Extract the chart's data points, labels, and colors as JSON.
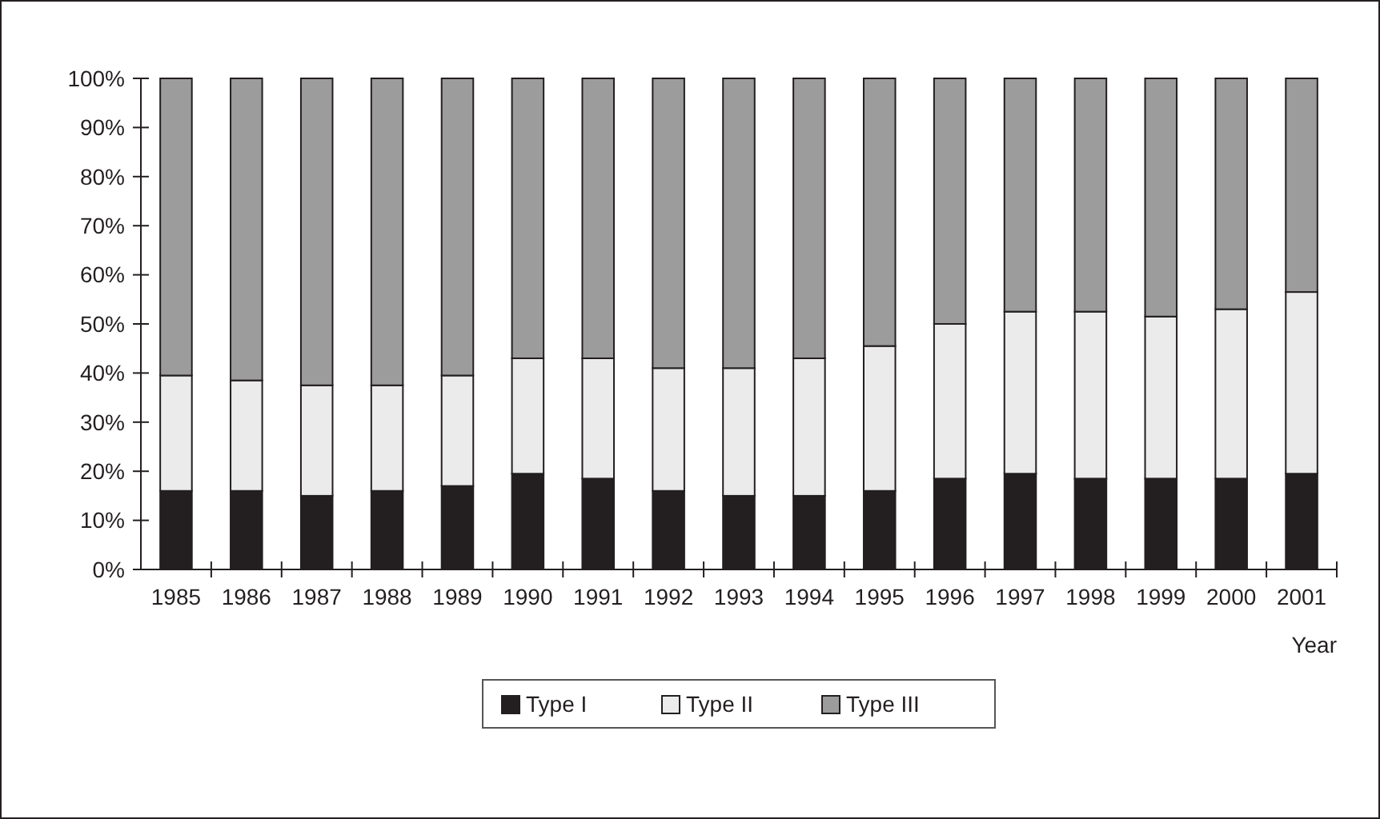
{
  "chart_data": {
    "type": "bar",
    "stacked": true,
    "xlabel": "Year",
    "categories": [
      "1985",
      "1986",
      "1987",
      "1988",
      "1989",
      "1990",
      "1991",
      "1992",
      "1993",
      "1994",
      "1995",
      "1996",
      "1997",
      "1998",
      "1999",
      "2000",
      "2001"
    ],
    "series": [
      {
        "name": "Type I",
        "color": "#231f20",
        "values": [
          16,
          16,
          15,
          16,
          17,
          19.5,
          18.5,
          16,
          15,
          15,
          16,
          18.5,
          19.5,
          18.5,
          18.5,
          18.5,
          19.5
        ]
      },
      {
        "name": "Type II",
        "color": "#ebebeb",
        "values": [
          23.5,
          22.5,
          22.5,
          21.5,
          22.5,
          23.5,
          24.5,
          25,
          26,
          28,
          29.5,
          31.5,
          33,
          34,
          33,
          34.5,
          37
        ]
      },
      {
        "name": "Type III",
        "color": "#9c9c9c",
        "values": [
          60.5,
          61.5,
          62.5,
          62.5,
          60.5,
          57,
          57,
          59,
          59,
          57,
          54.5,
          50,
          47.5,
          47.5,
          48.5,
          47,
          43.5
        ]
      }
    ],
    "ylim": [
      0,
      100
    ],
    "yticks": [
      {
        "value": 0,
        "label": "0%"
      },
      {
        "value": 10,
        "label": "10%"
      },
      {
        "value": 20,
        "label": "20%"
      },
      {
        "value": 30,
        "label": "30%"
      },
      {
        "value": 40,
        "label": "40%"
      },
      {
        "value": 50,
        "label": "50%"
      },
      {
        "value": 60,
        "label": "60%"
      },
      {
        "value": 70,
        "label": "70%"
      },
      {
        "value": 80,
        "label": "80%"
      },
      {
        "value": 90,
        "label": "90%"
      },
      {
        "value": 100,
        "label": "100%"
      }
    ],
    "legend": "bottom",
    "grid": false
  }
}
